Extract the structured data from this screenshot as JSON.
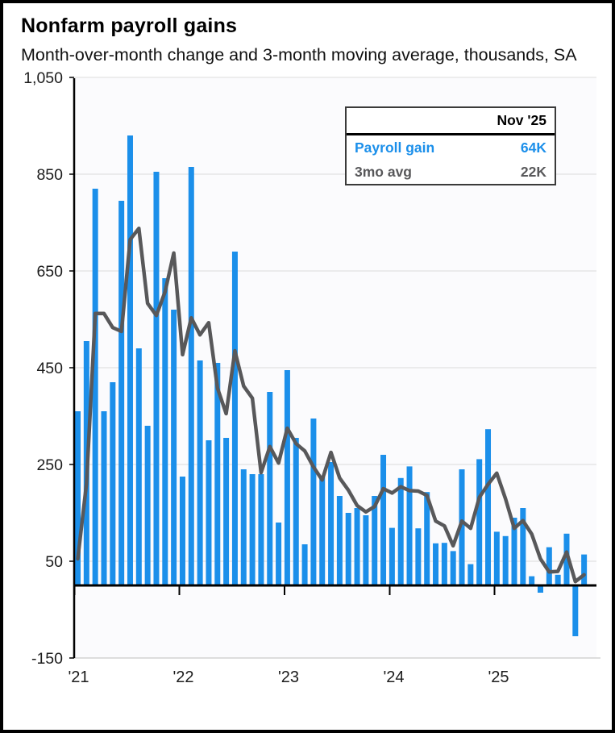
{
  "header": {
    "title": "Nonfarm payroll gains",
    "subtitle": "Month-over-month change and 3-month moving average, thousands, SA"
  },
  "legend": {
    "period_label": "Nov '25",
    "rows": [
      {
        "label": "Payroll gain",
        "value": "64K"
      },
      {
        "label": "3mo avg",
        "value": "22K"
      }
    ]
  },
  "axis": {
    "y_tick_labels": [
      "1,050",
      "850",
      "650",
      "450",
      "250",
      "50",
      "-150"
    ],
    "y_tick_values": [
      1050,
      850,
      650,
      450,
      250,
      50,
      -150
    ],
    "x_tick_labels": [
      "'21",
      "'22",
      "'23",
      "'24",
      "'25"
    ],
    "grid": true,
    "legend_position": "top-right"
  },
  "colors": {
    "bar": "#1B8FEA",
    "line": "#58585A",
    "axis": "#000000",
    "grid": "#DBDBDB",
    "boundary": "#C9C9C9",
    "plot_background": "#FBFBFD"
  },
  "chart_data": {
    "type": "bar+line",
    "title": "Nonfarm payroll gains",
    "subtitle": "Month-over-month change and 3-month moving average, thousands, SA",
    "unit": "thousands, seasonally adjusted",
    "ylim": [
      -150,
      1050
    ],
    "y_step": 200,
    "months": [
      "Jan '21",
      "Feb '21",
      "Mar '21",
      "Apr '21",
      "May '21",
      "Jun '21",
      "Jul '21",
      "Aug '21",
      "Sep '21",
      "Oct '21",
      "Nov '21",
      "Dec '21",
      "Jan '22",
      "Feb '22",
      "Mar '22",
      "Apr '22",
      "May '22",
      "Jun '22",
      "Jul '22",
      "Aug '22",
      "Sep '22",
      "Oct '22",
      "Nov '22",
      "Dec '22",
      "Jan '23",
      "Feb '23",
      "Mar '23",
      "Apr '23",
      "May '23",
      "Jun '23",
      "Jul '23",
      "Aug '23",
      "Sep '23",
      "Oct '23",
      "Nov '23",
      "Dec '23",
      "Jan '24",
      "Feb '24",
      "Mar '24",
      "Apr '24",
      "May '24",
      "Jun '24",
      "Jul '24",
      "Aug '24",
      "Sep '24",
      "Oct '24",
      "Nov '24",
      "Dec '24",
      "Jan '25",
      "Feb '25",
      "Mar '25",
      "Apr '25",
      "May '25",
      "Jun '25",
      "Jul '25",
      "Aug '25",
      "Sep '25",
      "Oct '25",
      "Nov '25"
    ],
    "series": [
      {
        "name": "Payroll gain",
        "type": "bar",
        "values": [
          360,
          505,
          820,
          360,
          420,
          795,
          930,
          490,
          330,
          855,
          635,
          570,
          225,
          865,
          465,
          300,
          460,
          305,
          690,
          240,
          230,
          230,
          400,
          130,
          445,
          305,
          85,
          345,
          225,
          255,
          185,
          150,
          160,
          145,
          185,
          270,
          119,
          222,
          246,
          118,
          193,
          87,
          88,
          71,
          240,
          44,
          261,
          323,
          111,
          102,
          140,
          160,
          19,
          -15,
          79,
          22,
          107,
          -105,
          64
        ]
      },
      {
        "name": "3mo avg",
        "type": "line",
        "values": [
          55,
          210,
          562,
          562,
          533,
          525,
          715,
          738,
          583,
          558,
          607,
          687,
          477,
          553,
          518,
          543,
          408,
          355,
          485,
          412,
          387,
          233,
          287,
          253,
          325,
          293,
          278,
          245,
          218,
          275,
          222,
          197,
          165,
          152,
          163,
          200,
          191,
          204,
          196,
          195,
          186,
          133,
          123,
          82,
          133,
          118,
          182,
          209,
          232,
          179,
          118,
          134,
          106,
          55,
          28,
          29,
          69,
          8,
          22
        ]
      }
    ],
    "latest": {
      "month": "Nov '25",
      "payroll_gain": "64K",
      "three_month_avg": "22K"
    }
  }
}
